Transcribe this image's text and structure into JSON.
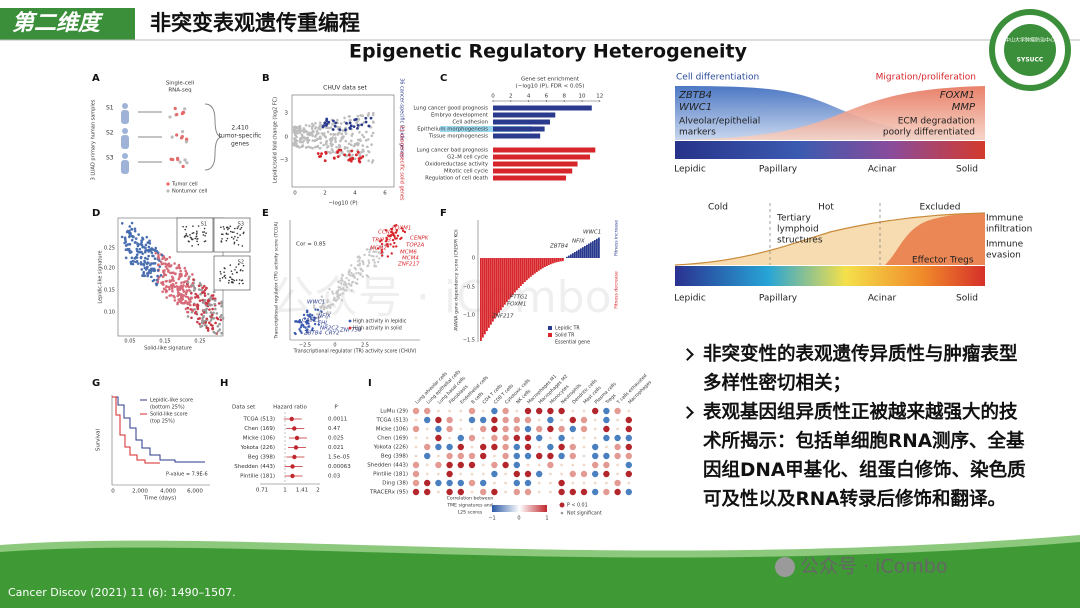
{
  "header": {
    "badge": "第二维度",
    "title": "非突变表观遗传重编程"
  },
  "subtitle": "Epigenetic Regulatory Heterogeneity",
  "logo": {
    "name": "中山大学肿瘤防治中心",
    "abbr": "SYSUCC"
  },
  "figure": {
    "A": {
      "letter": "A",
      "scrna": [
        "Single-cell",
        "RNA-seq"
      ],
      "samples": [
        "S1",
        "S2",
        "S3"
      ],
      "side": "3 LUAD primary human samples",
      "genes": [
        "2,410",
        "tumor-specific",
        "genes"
      ],
      "legend": [
        "Tumor cell",
        "Nontumor cell"
      ]
    },
    "B": {
      "letter": "B",
      "title": "CHUV data set",
      "ylabel": "Lepidic/solid fold change (log2 FC)",
      "xlabel": "−log10 (P)",
      "yticks": [
        "3",
        "0",
        "−3"
      ],
      "xticks": [
        "0",
        "2",
        "4",
        "6"
      ],
      "up": "36 cancer-specific lepidic genes",
      "down": "21 cancer-specific solid genes"
    },
    "C": {
      "letter": "C",
      "title": [
        "Gene set enrichment",
        "(−log10 (P), FDR < 0.05)"
      ],
      "ticks": [
        0,
        2,
        4,
        6,
        8,
        10,
        12
      ],
      "good": {
        "names": [
          "Lung cancer good prognosis",
          "Embryo development",
          "Cell adhesion",
          "Epithelium morphogenesis",
          "Tissue morphogenesis"
        ],
        "values": [
          11.1,
          7,
          6.4,
          5.8,
          5.3
        ],
        "color": "#2a3a8c"
      },
      "bad": {
        "names": [
          "Lung cancer bad prognosis",
          "G2–M cell cycle",
          "Oxidoreductase activity",
          "Mitotic cell cycle",
          "Regulation of cell death"
        ],
        "values": [
          11.5,
          10.9,
          9.5,
          8.9,
          8.2
        ],
        "color": "#d7262b"
      }
    },
    "D": {
      "letter": "D",
      "ylabel": "Lepidic-like signature",
      "xlabel": "Solid-like signature",
      "yticks": [
        "0.25",
        "0.20",
        "0.15",
        "0.10"
      ],
      "xticks": [
        "0.05",
        "0.15",
        "0.25"
      ],
      "insets": [
        "S1",
        "S3",
        "S2"
      ]
    },
    "E": {
      "letter": "E",
      "cor": "Cor = 0.85",
      "red": [
        "CCNA2",
        "FOXM1",
        "TRIP13",
        "CENPK",
        "TOP2A",
        "MCM2",
        "MCM6",
        "MCM4",
        "ZNF217"
      ],
      "blue": [
        "WWC1",
        "NFIX",
        "CASZ1",
        "FHL",
        "NR2C2",
        "ZBTB4",
        "CRY2",
        "ZNF750"
      ],
      "legend": [
        "High activity in lepidic",
        "High activity in solid"
      ],
      "xlabel": "Transcriptional regulator (TR) activity score (CHUV)",
      "ylabel": "Transcriptional regulator (TR) activity score (TCGA)",
      "xticks": [
        "−2.5",
        "0",
        "2.5"
      ]
    },
    "F": {
      "letter": "F",
      "genes": [
        "WWC1",
        "NFIX",
        "ZBTB4",
        "PTTG1",
        "FOXM1",
        "ZNF217"
      ],
      "increase": "Fitness increase",
      "decrease": "Fitness decrease",
      "legend": [
        "Lepidic TR",
        "Solid TR",
        "Essential gene"
      ],
      "ylabel": "AVANA gene dependency score (CRISPR KO)",
      "yticks": [
        "0",
        "−0.5",
        "−1.0",
        "−1.5"
      ]
    },
    "G": {
      "letter": "G",
      "legend": [
        [
          "Lepidic-like score",
          "(bottom 25%)"
        ],
        [
          "Solid-like score",
          "(top 25%)"
        ]
      ],
      "pvalue": "P-value = 7.9E-6",
      "ylabel": "Survival",
      "xlabel": "Time (days)",
      "xticks": [
        "0",
        "2,000",
        "4,000",
        "6,000"
      ]
    },
    "H": {
      "letter": "H",
      "headers": [
        "Data set",
        "Hazard ratio",
        "P"
      ],
      "rows": [
        [
          "TCGA (513)",
          "0.0011"
        ],
        [
          "Chen (169)",
          "0.47"
        ],
        [
          "Micke (106)",
          "0.025"
        ],
        [
          "Yokota (226)",
          "0.021"
        ],
        [
          "Beg (398)",
          "1.5e–05"
        ],
        [
          "Shedden (443)",
          "0.00063"
        ],
        [
          "Pintilie (181)",
          "0.03"
        ]
      ],
      "xticks": [
        "0.71",
        "1",
        "1.41",
        "2"
      ]
    },
    "I": {
      "letter": "I",
      "rows": [
        "LuMu (29)",
        "TCGA (513)",
        "Micke (106)",
        "Chen (169)",
        "Yokota (226)",
        "Beg (398)",
        "Shedden (443)",
        "Pintilie (181)",
        "Ding (38)",
        "TRACERx (95)"
      ],
      "columns": [
        "Lung alveolar cells",
        "Lung epithelial cells",
        "Lung basal cells",
        "Fibroblasts",
        "Endothelial cells",
        "B cells",
        "CD4 T cells",
        "CD8 T cells",
        "Cytotoxic cells",
        "NK cells",
        "Macrophages M1",
        "Macrophages M2",
        "Monocytes",
        "Neutrophils",
        "Dendritic cells",
        "Mast cells",
        "Plasma cells",
        "Tregs",
        "T cells exhausted",
        "Macrophages"
      ],
      "legend": [
        "Correlation between",
        "TME signatures and",
        "L2S scores"
      ],
      "scale": [
        "−1",
        "0",
        "1"
      ],
      "sig": [
        "P < 0.01",
        "Not significant"
      ]
    }
  },
  "diagram1": {
    "left": "Cell differentiation",
    "right": "Migration/proliferation",
    "leftGenes": [
      "ZBTB4",
      "WWC1"
    ],
    "leftMarkers": [
      "Alveolar/epithelial",
      "markers"
    ],
    "rightGenes": [
      "FOXM1",
      "MMP"
    ],
    "rightNotes": [
      "ECM degradation",
      "poorly differentiated"
    ],
    "stages": [
      "Lepidic",
      "Papillary",
      "Acinar",
      "Solid"
    ]
  },
  "diagram2": {
    "states": [
      "Cold",
      "Hot",
      "Excluded"
    ],
    "tls": [
      "Tertiary",
      "lymphoid",
      "structures"
    ],
    "infiltration": [
      "Immune",
      "infiltration"
    ],
    "evasion": [
      "Immune",
      "evasion"
    ],
    "tregs": "Effector Tregs",
    "stages": [
      "Lepidic",
      "Papillary",
      "Acinar",
      "Solid"
    ]
  },
  "bullets": [
    "非突变性的表观遗传异质性与肿瘤表型多样性密切相关；",
    "表观基因组异质性正被越来越强大的技术所揭示：包括单细胞RNA测序、全基因组DNA甲基化、组蛋白修饰、染色质可及性以及RNA转录后修饰和翻译。"
  ],
  "footer": "Cancer Discov (2021) 11 (6): 1490–1507.",
  "watermark": "公众号 · iCombo"
}
